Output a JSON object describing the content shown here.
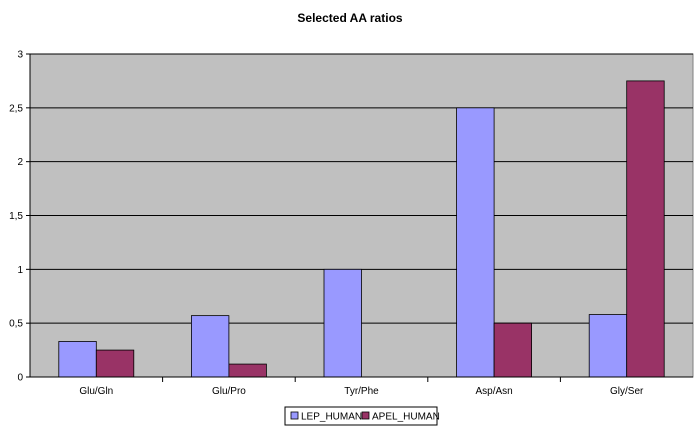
{
  "chart_data": {
    "type": "bar",
    "title": "Selected AA ratios",
    "xlabel": "",
    "ylabel": "",
    "categories": [
      "Glu/Gln",
      "Glu/Pro",
      "Tyr/Phe",
      "Asp/Asn",
      "Gly/Ser"
    ],
    "series": [
      {
        "name": "LEP_HUMAN",
        "values": [
          0.33,
          0.57,
          1.0,
          2.5,
          0.58
        ],
        "color": "#9999ff"
      },
      {
        "name": "APEL_HUMAN",
        "values": [
          0.25,
          0.12,
          0,
          0.5,
          2.75
        ],
        "color": "#993366"
      }
    ],
    "ylim": [
      0,
      3
    ],
    "yticks": [
      0,
      0.5,
      1,
      1.5,
      2,
      2.5,
      3
    ],
    "ytick_labels": [
      "0",
      "0,5",
      "1",
      "1,5",
      "2",
      "2,5",
      "3"
    ],
    "grid": true,
    "legend_position": "bottom",
    "plot_background": "#c0c0c0",
    "gridline_color": "#000000"
  }
}
